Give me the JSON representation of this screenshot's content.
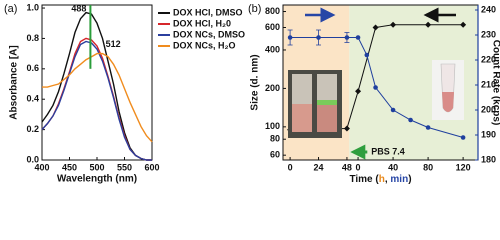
{
  "chart_data": [
    {
      "type": "line",
      "panel": "(a)",
      "xlabel": "Wavelength (nm)",
      "ylabel": "Absorbance [A]",
      "x": [
        400,
        410,
        420,
        430,
        440,
        450,
        460,
        470,
        480,
        490,
        500,
        510,
        520,
        530,
        540,
        550,
        560,
        570,
        580,
        590,
        600
      ],
      "xlim": [
        400,
        600
      ],
      "xticks": [
        400,
        450,
        500,
        550,
        600
      ],
      "ylim": [
        0,
        1.02
      ],
      "yticks": [
        {
          "value": 0,
          "label": "0.0"
        },
        0.2,
        0.4,
        0.6,
        0.8,
        {
          "value": 1,
          "label": "1.0"
        }
      ],
      "series": [
        {
          "name": "DOX HCl, DMSO",
          "color": "#111111",
          "values": [
            0.25,
            0.3,
            0.36,
            0.45,
            0.57,
            0.7,
            0.84,
            0.93,
            0.97,
            0.96,
            0.9,
            0.8,
            0.65,
            0.5,
            0.32,
            0.18,
            0.08,
            0.03,
            0.01,
            0,
            0
          ]
        },
        {
          "name": "DOX HCl, H₂0",
          "color": "#d6262b",
          "values": [
            0.2,
            0.24,
            0.29,
            0.37,
            0.47,
            0.58,
            0.7,
            0.78,
            0.8,
            0.79,
            0.75,
            0.67,
            0.55,
            0.42,
            0.28,
            0.16,
            0.07,
            0.03,
            0.01,
            0,
            0
          ]
        },
        {
          "name": "DOX NCs, DMSO",
          "color": "#2b3f9e",
          "values": [
            0.2,
            0.24,
            0.29,
            0.36,
            0.46,
            0.57,
            0.68,
            0.76,
            0.78,
            0.77,
            0.73,
            0.65,
            0.54,
            0.41,
            0.27,
            0.15,
            0.07,
            0.03,
            0.01,
            0,
            0
          ]
        },
        {
          "name": "DOX NCs, H₂O",
          "color": "#f08c1e",
          "values": [
            0.48,
            0.48,
            0.49,
            0.5,
            0.53,
            0.56,
            0.6,
            0.63,
            0.66,
            0.68,
            0.7,
            0.7,
            0.68,
            0.63,
            0.56,
            0.47,
            0.38,
            0.3,
            0.22,
            0.16,
            0.12
          ]
        }
      ],
      "peaks": [
        {
          "value": 488,
          "color": "#2a9d3a"
        },
        {
          "value": 512,
          "color": "#f08c1e"
        }
      ]
    },
    {
      "type": "line",
      "panel": "(b)",
      "xlabel": [
        "Time (",
        "h",
        ", ",
        "min",
        ")"
      ],
      "ylabel": "Size (d. nm)",
      "y2label": "Count Rate (kcps)",
      "ylog": true,
      "ylim": [
        55,
        900
      ],
      "yticks": [
        60,
        80,
        100,
        200,
        400,
        600,
        800
      ],
      "y2lim": [
        180,
        242
      ],
      "y2ticks": [
        180,
        190,
        200,
        210,
        220,
        230,
        240
      ],
      "y2color": "#1f3f9e",
      "xaxes": [
        {
          "lim": [
            -6,
            50
          ],
          "ticks": [
            0,
            24,
            48
          ],
          "color": "#e8891c",
          "background": "#fbe4c6"
        },
        {
          "lim": [
            -10,
            137
          ],
          "ticks": [
            0,
            40,
            80,
            120
          ],
          "color": "#2746a6",
          "background": "#e7efd6"
        }
      ],
      "series": [
        {
          "color": "#111111",
          "marker": "diamond",
          "axis": "y",
          "segments": [
            {
              "xaxis": 0,
              "x": [
                0,
                24,
                48
              ],
              "values": [
                95,
                96,
                97
              ]
            },
            {
              "xaxis": 1,
              "x": [
                0,
                20,
                40,
                80,
                120
              ],
              "values": [
                190,
                600,
                630,
                630,
                630
              ]
            }
          ]
        },
        {
          "color": "#1f3f9e",
          "marker": "circle",
          "axis": "y2",
          "segments": [
            {
              "xaxis": 0,
              "x": [
                0,
                24,
                48
              ],
              "values": [
                229,
                229,
                229
              ],
              "errors": [
                3,
                3,
                2
              ]
            },
            {
              "xaxis": 1,
              "x": [
                0,
                10,
                20,
                40,
                60,
                80,
                120
              ],
              "values": [
                229,
                222,
                209,
                200,
                196,
                193,
                189
              ]
            }
          ]
        }
      ],
      "annotation": "PBS 7.4",
      "annotation_color": "#2e9e3e"
    }
  ]
}
